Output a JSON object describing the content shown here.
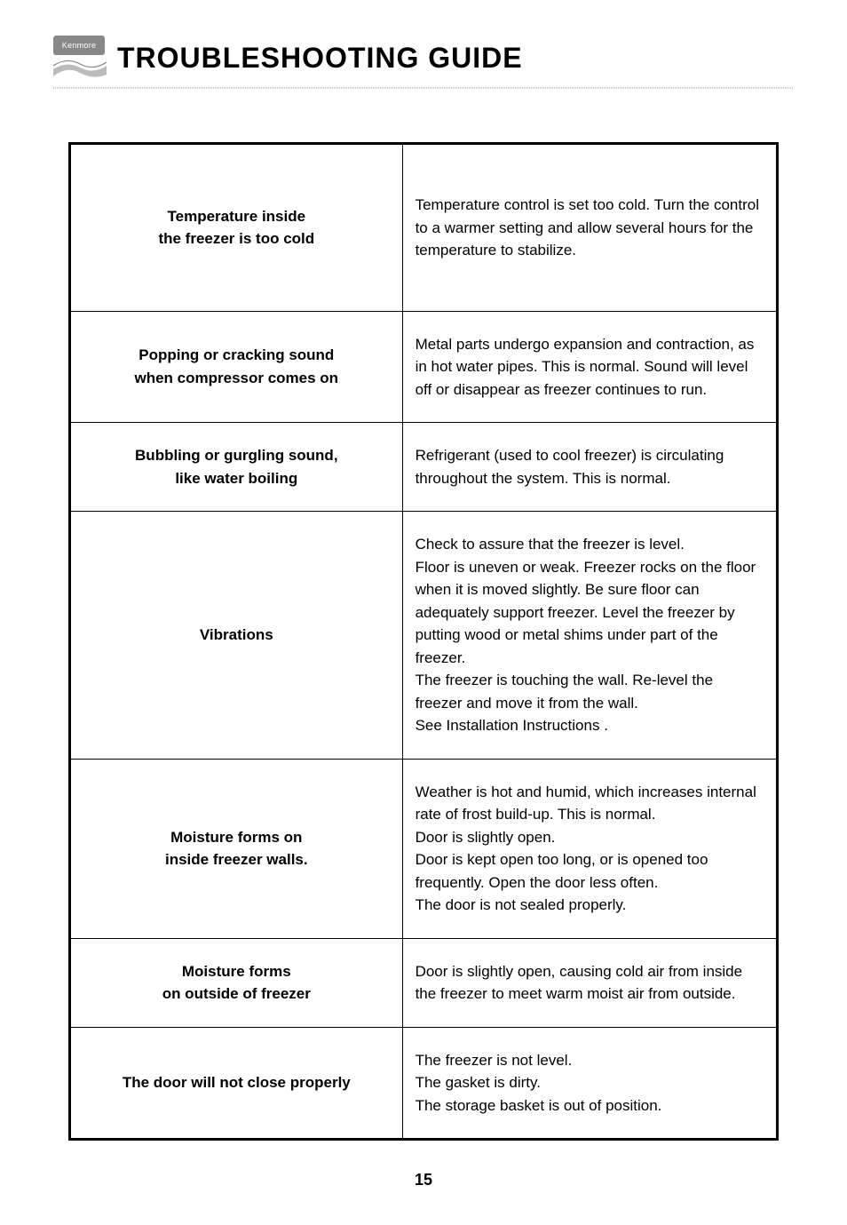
{
  "brand": "Kenmore",
  "heading": "TROUBLESHOOTING GUIDE",
  "page_number": "15",
  "colors": {
    "background": "#ffffff",
    "text": "#000000",
    "border": "#000000",
    "divider": "#cccccc",
    "badge_bg": "#888888",
    "badge_text": "#ffffff"
  },
  "typography": {
    "heading_fontsize": 32,
    "body_fontsize": 17,
    "pagenum_fontsize": 18,
    "font_family": "Century Gothic"
  },
  "table": {
    "rows": [
      {
        "problem": "Temperature inside\nthe freezer is too cold",
        "solution": "Temperature control is set too cold.  Turn the control to a warmer setting and allow several hours for the temperature to stabilize.",
        "tall": true
      },
      {
        "problem": "Popping or cracking sound\nwhen compressor comes on",
        "solution": "Metal parts undergo expansion and contraction, as in hot water pipes.  This is normal.  Sound will level off or disappear as freezer continues to run."
      },
      {
        "problem": "Bubbling or gurgling sound,\nlike water boiling",
        "solution": "Refrigerant (used to cool freezer) is circulating throughout the system.  This is normal."
      },
      {
        "problem": "Vibrations",
        "solution": "Check to assure that the freezer is level.\nFloor is uneven or weak.  Freezer rocks on the floor when it is moved slightly.  Be sure floor can adequately support freezer.  Level the freezer by putting wood or metal shims under part of the freezer.\nThe freezer is touching the wall.  Re-level the freezer and move it from the wall.\nSee   Installation Instructions  ."
      },
      {
        "problem": "Moisture forms on\ninside freezer walls.",
        "solution": "Weather is hot and humid, which increases internal rate of frost build-up.  This is normal.\nDoor is slightly open.\nDoor is kept open too long, or is opened too frequently.  Open the door less often.\nThe door is not sealed properly."
      },
      {
        "problem": "Moisture forms\non outside of freezer",
        "solution": "Door is slightly open, causing cold air from inside the freezer to meet warm moist air from outside."
      },
      {
        "problem": "The door will not close properly",
        "solution": "The freezer is not level.\nThe gasket is dirty.\nThe storage basket is out of position."
      }
    ]
  }
}
